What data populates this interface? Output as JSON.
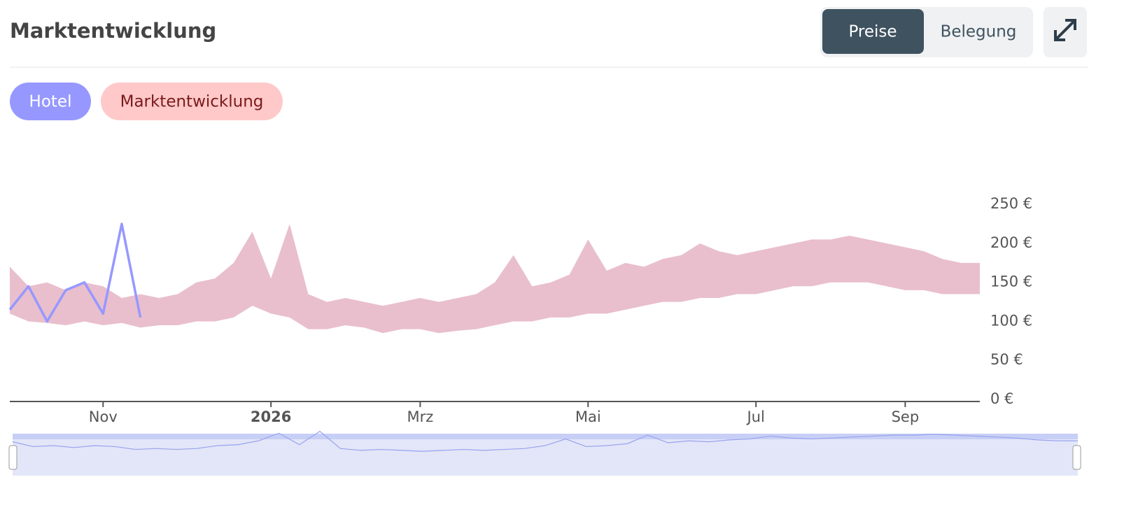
{
  "header": {
    "title": "Marktentwicklung",
    "toggle": [
      "Preise",
      "Belegung"
    ],
    "active_toggle": 0
  },
  "chart_data": {
    "type": "line",
    "categories": [
      null,
      null,
      null,
      null,
      null,
      "Nov",
      null,
      null,
      null,
      null,
      null,
      null,
      null,
      null,
      "2026",
      null,
      null,
      null,
      null,
      null,
      null,
      null,
      "Mrz",
      null,
      null,
      null,
      null,
      null,
      null,
      null,
      null,
      "Mai",
      null,
      null,
      null,
      null,
      null,
      null,
      null,
      null,
      "Jul",
      null,
      null,
      null,
      null,
      null,
      null,
      null,
      "Sep",
      null,
      null,
      null,
      null
    ],
    "series": [
      {
        "name": "Hotel",
        "color": "#9698ff",
        "values": [
          115,
          145,
          100,
          140,
          150,
          110,
          225,
          105,
          null,
          null,
          null,
          null,
          null,
          null,
          null,
          null,
          null,
          null,
          null,
          null,
          null,
          null,
          null,
          null,
          null,
          null,
          null,
          null,
          null,
          null,
          null,
          null,
          null,
          null,
          null,
          null,
          null,
          null,
          null,
          null,
          null,
          null,
          null,
          null,
          null,
          null,
          null,
          null,
          null,
          null,
          null,
          null,
          null
        ]
      },
      {
        "name": "Marktentwicklung",
        "type": "arearange",
        "color": "#e9bfcd",
        "low": [
          110,
          100,
          98,
          95,
          100,
          95,
          98,
          92,
          95,
          95,
          100,
          100,
          105,
          120,
          110,
          105,
          90,
          90,
          95,
          92,
          85,
          90,
          90,
          85,
          88,
          90,
          95,
          100,
          100,
          105,
          105,
          110,
          110,
          115,
          120,
          125,
          125,
          130,
          130,
          135,
          135,
          140,
          145,
          145,
          150,
          150,
          150,
          145,
          140,
          140,
          135,
          135,
          135
        ],
        "high": [
          170,
          145,
          150,
          140,
          150,
          145,
          130,
          135,
          130,
          135,
          150,
          155,
          175,
          215,
          155,
          225,
          135,
          125,
          130,
          125,
          120,
          125,
          130,
          125,
          130,
          135,
          150,
          185,
          145,
          150,
          160,
          205,
          165,
          175,
          170,
          180,
          185,
          200,
          190,
          185,
          190,
          195,
          200,
          205,
          205,
          210,
          205,
          200,
          195,
          190,
          180,
          175,
          175
        ]
      }
    ],
    "ylim": [
      0,
      330
    ],
    "yticks": [
      {
        "value": 0,
        "label": "0 €"
      },
      {
        "value": 50,
        "label": "50 €"
      },
      {
        "value": 100,
        "label": "100 €"
      },
      {
        "value": 150,
        "label": "150 €"
      },
      {
        "value": 200,
        "label": "200 €"
      },
      {
        "value": 250,
        "label": "250 €"
      }
    ],
    "grid": false
  }
}
